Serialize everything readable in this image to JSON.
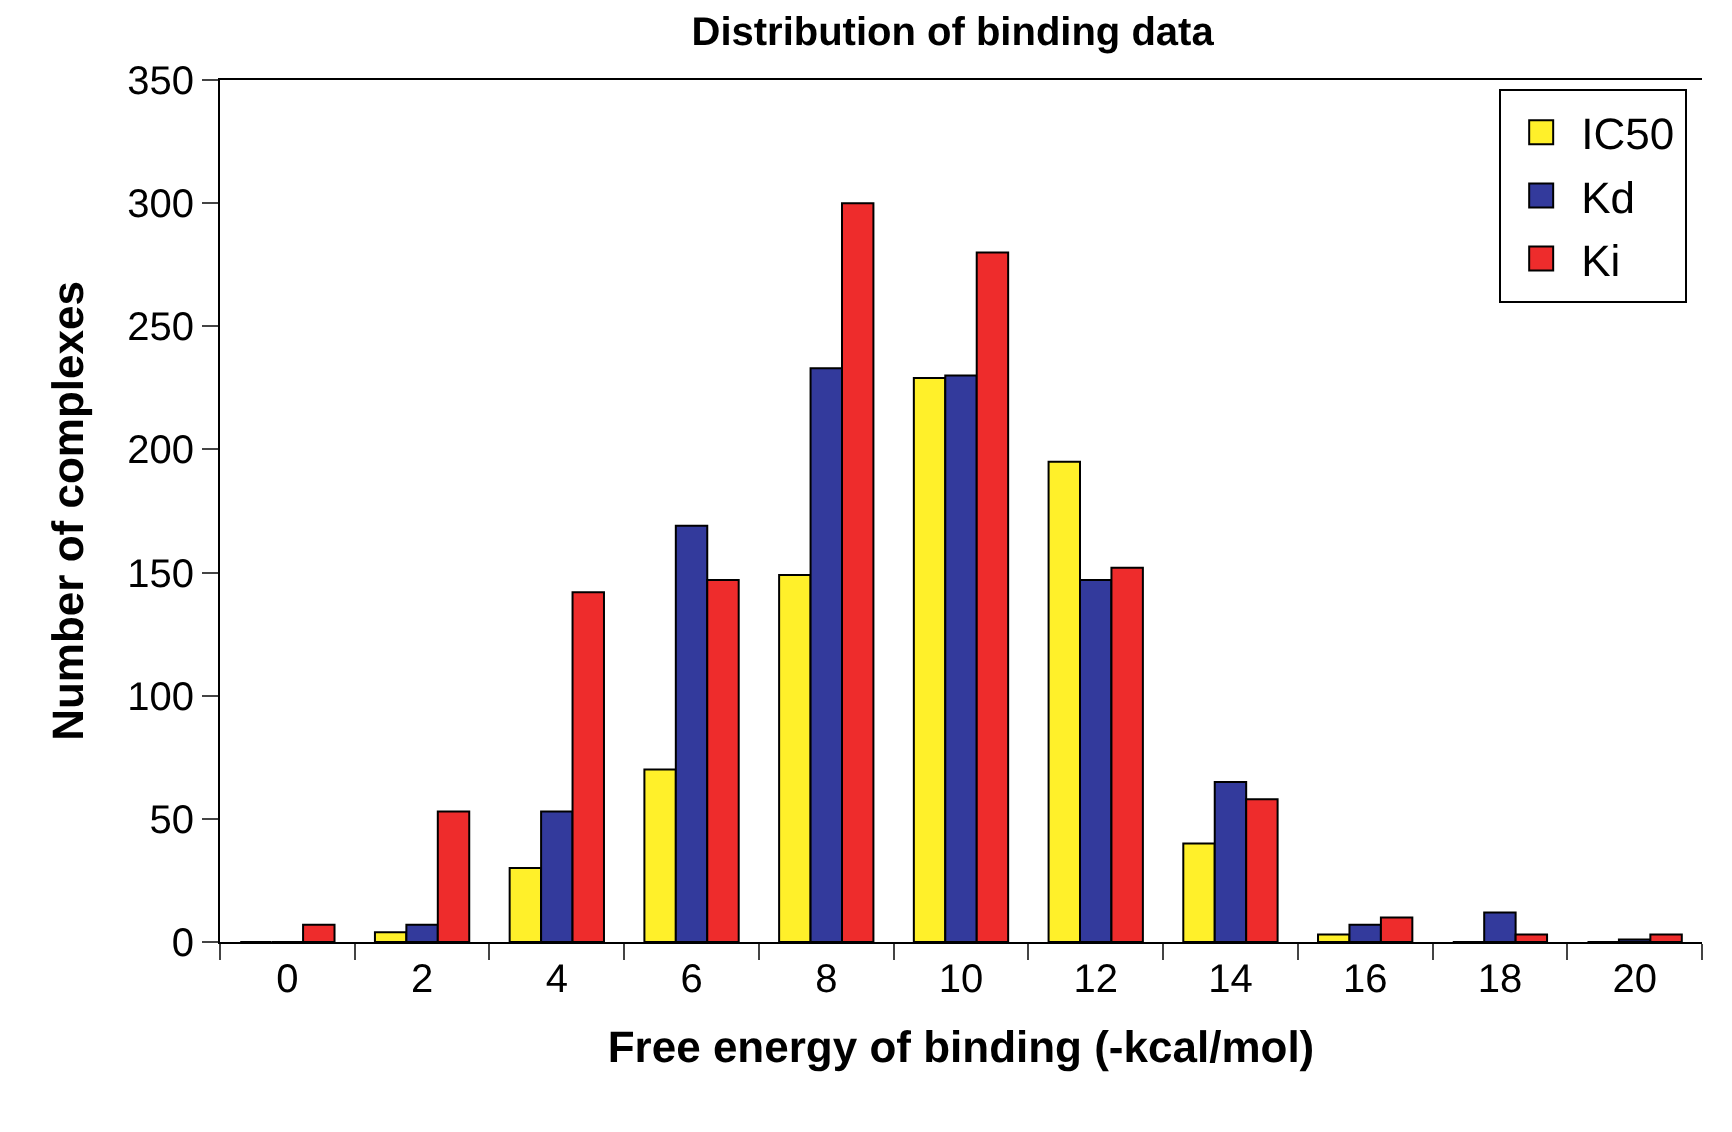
{
  "chart_data": {
    "type": "bar",
    "title": "Distribution of binding data",
    "xlabel": "Free energy of binding (-kcal/mol)",
    "ylabel": "Number of complexes",
    "categories": [
      "0",
      "2",
      "4",
      "6",
      "8",
      "10",
      "12",
      "14",
      "16",
      "18",
      "20"
    ],
    "series": [
      {
        "name": "IC50",
        "color": "#fff02a",
        "values": [
          0,
          4,
          30,
          70,
          149,
          229,
          195,
          40,
          3,
          0,
          0
        ]
      },
      {
        "name": "Kd",
        "color": "#333a9c",
        "values": [
          0,
          7,
          53,
          169,
          233,
          230,
          147,
          65,
          7,
          12,
          1
        ]
      },
      {
        "name": "Ki",
        "color": "#ee2c2c",
        "values": [
          7,
          53,
          142,
          147,
          300,
          280,
          152,
          58,
          10,
          3,
          3
        ]
      }
    ],
    "ylim": [
      0,
      350
    ],
    "yticks": [
      0,
      50,
      100,
      150,
      200,
      250,
      300,
      350
    ],
    "legend": "top right"
  }
}
